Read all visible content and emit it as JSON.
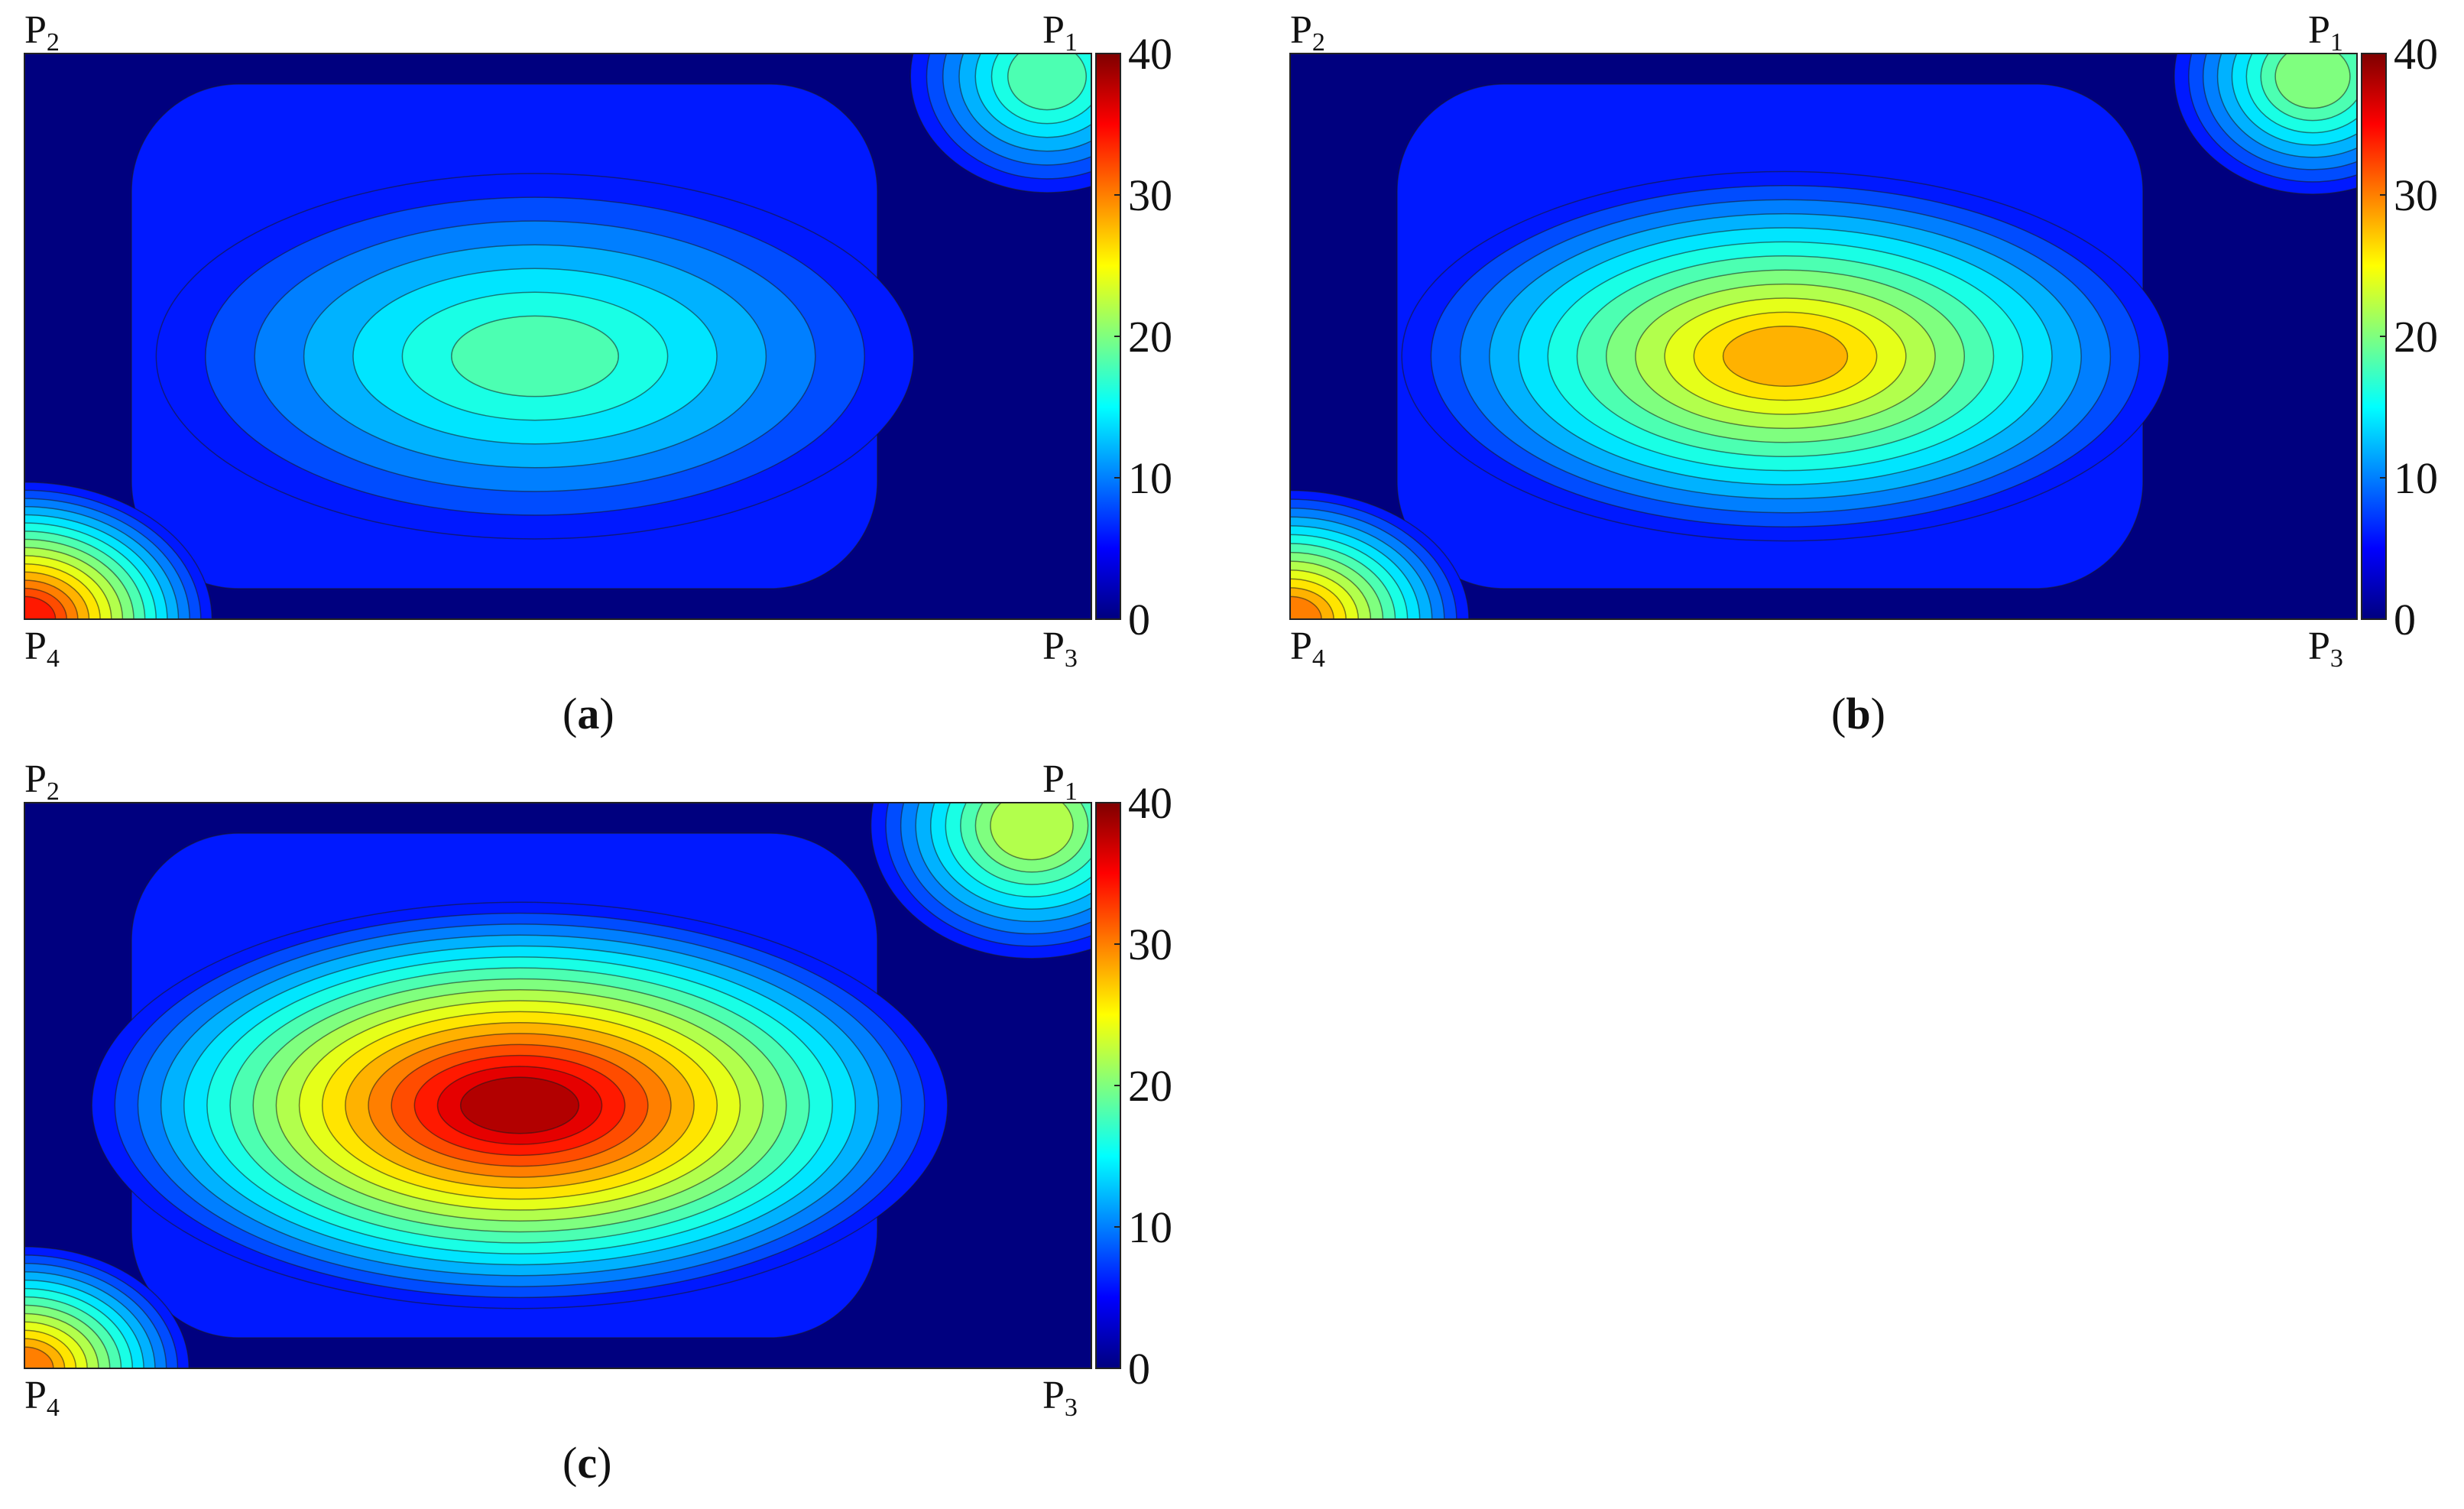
{
  "colorbar": {
    "ticks": [
      0,
      10,
      20,
      30,
      40
    ],
    "range": [
      0,
      40
    ],
    "colormap": "jet",
    "stops": [
      "#00007f",
      "#0000ff",
      "#007fff",
      "#00ffff",
      "#7fff7f",
      "#ffff00",
      "#ff7f00",
      "#ff0000",
      "#7f0000"
    ]
  },
  "corner_labels": {
    "p1": {
      "main": "P",
      "sub": "1"
    },
    "p2": {
      "main": "P",
      "sub": "2"
    },
    "p3": {
      "main": "P",
      "sub": "3"
    },
    "p4": {
      "main": "P",
      "sub": "4"
    }
  },
  "chart_data": [
    {
      "type": "heatmap",
      "panel": "a",
      "caption": {
        "open": "(",
        "letter": "a",
        "close": ")"
      },
      "zlim": [
        0,
        40
      ],
      "contour_levels": [
        2,
        4,
        6,
        8,
        10,
        12,
        14,
        16,
        18,
        20,
        22,
        24,
        26,
        28,
        30,
        32,
        34,
        36,
        38
      ],
      "features": [
        {
          "location": "center",
          "value": 19
        },
        {
          "location": "P1 corner",
          "value": 18
        },
        {
          "location": "P4 corner",
          "value": 34
        },
        {
          "location": "P2 left edge",
          "value": 2
        },
        {
          "location": "P3 right edge",
          "value": 1
        },
        {
          "location": "top edge",
          "value": 3
        },
        {
          "location": "bottom edge",
          "value": 3
        }
      ]
    },
    {
      "type": "heatmap",
      "panel": "b",
      "caption": {
        "open": "(",
        "letter": "b",
        "close": ")"
      },
      "zlim": [
        0,
        40
      ],
      "contour_levels": [
        2,
        4,
        6,
        8,
        10,
        12,
        14,
        16,
        18,
        20,
        22,
        24,
        26,
        28,
        30,
        32,
        34,
        36,
        38
      ],
      "features": [
        {
          "location": "center",
          "value": 28
        },
        {
          "location": "P1 corner",
          "value": 20
        },
        {
          "location": "P4 corner",
          "value": 31
        },
        {
          "location": "P2 left edge",
          "value": 1
        },
        {
          "location": "P3 right edge",
          "value": 1
        },
        {
          "location": "top edge",
          "value": 2
        },
        {
          "location": "bottom edge",
          "value": 2
        }
      ]
    },
    {
      "type": "heatmap",
      "panel": "c",
      "caption": {
        "open": "(",
        "letter": "c",
        "close": ")"
      },
      "zlim": [
        0,
        40
      ],
      "contour_levels": [
        2,
        4,
        6,
        8,
        10,
        12,
        14,
        16,
        18,
        20,
        22,
        24,
        26,
        28,
        30,
        32,
        34,
        36,
        38
      ],
      "features": [
        {
          "location": "center",
          "value": 38
        },
        {
          "location": "P1 corner",
          "value": 22
        },
        {
          "location": "P4 corner",
          "value": 31
        },
        {
          "location": "P2 left edge",
          "value": 1
        },
        {
          "location": "P3 right edge",
          "value": 1
        },
        {
          "location": "top edge",
          "value": 1
        },
        {
          "location": "bottom edge",
          "value": 2
        }
      ]
    }
  ]
}
